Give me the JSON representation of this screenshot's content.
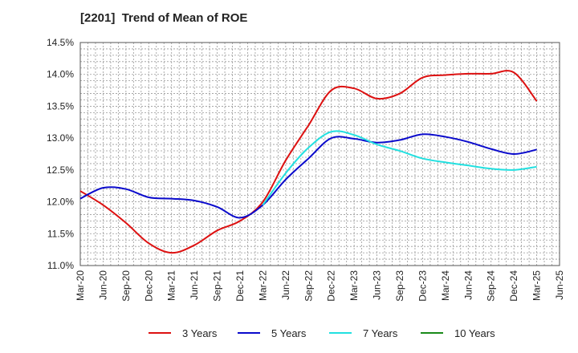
{
  "chart_data": {
    "type": "line",
    "title": "[2201]  Trend of Mean of ROE",
    "xlabel": "",
    "ylabel": "",
    "x_labels": [
      "Mar-20",
      "Jun-20",
      "Sep-20",
      "Dec-20",
      "Mar-21",
      "Jun-21",
      "Sep-21",
      "Dec-21",
      "Mar-22",
      "Jun-22",
      "Sep-22",
      "Dec-22",
      "Mar-23",
      "Jun-23",
      "Sep-23",
      "Dec-23",
      "Mar-24",
      "Jun-24",
      "Sep-24",
      "Dec-24",
      "Mar-25",
      "Jun-25"
    ],
    "y_ticks": [
      "11.0%",
      "11.5%",
      "12.0%",
      "12.5%",
      "13.0%",
      "13.5%",
      "14.0%",
      "14.5%"
    ],
    "ylim": [
      11.0,
      14.5
    ],
    "grid": true,
    "legend_position": "bottom",
    "series": [
      {
        "name": "3 Years",
        "color": "#dd1111",
        "start_index": 0,
        "values": [
          12.17,
          11.95,
          11.67,
          11.35,
          11.2,
          11.32,
          11.55,
          11.7,
          12.0,
          12.65,
          13.2,
          13.75,
          13.78,
          13.62,
          13.7,
          13.95,
          13.99,
          14.01,
          14.01,
          14.03,
          13.58
        ]
      },
      {
        "name": "5 Years",
        "color": "#0a0acc",
        "start_index": 0,
        "values": [
          12.05,
          12.22,
          12.2,
          12.07,
          12.05,
          12.02,
          11.92,
          11.75,
          11.95,
          12.35,
          12.68,
          13.0,
          12.99,
          12.93,
          12.97,
          13.06,
          13.02,
          12.94,
          12.83,
          12.75,
          12.82
        ]
      },
      {
        "name": "7 Years",
        "color": "#22e0e0",
        "start_index": 8,
        "values": [
          11.95,
          12.45,
          12.85,
          13.1,
          13.05,
          12.9,
          12.8,
          12.68,
          12.62,
          12.57,
          12.52,
          12.5,
          12.55
        ]
      },
      {
        "name": "10 Years",
        "color": "#1a8a1a",
        "start_index": 0,
        "values": []
      }
    ]
  }
}
